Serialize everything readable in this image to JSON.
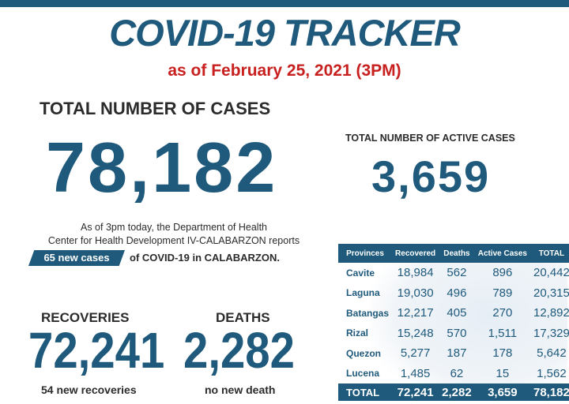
{
  "header": {
    "title": "COVID-19 TRACKER",
    "subtitle": "as of February 25, 2021 (3PM)"
  },
  "total_cases": {
    "label": "TOTAL NUMBER OF CASES",
    "value": "78,182"
  },
  "active_cases": {
    "label": "TOTAL NUMBER OF ACTIVE CASES",
    "value": "3,659"
  },
  "report": {
    "line1": "As of 3pm today, the Department of Health",
    "line2": "Center for Health Development IV-CALABARZON reports",
    "new_cases_badge": "65 new cases",
    "line3_tail": "of COVID-19 in CALABARZON."
  },
  "recoveries": {
    "label": "RECOVERIES",
    "value": "72,241",
    "note": "54 new recoveries"
  },
  "deaths": {
    "label": "DEATHS",
    "value": "2,282",
    "note": "no new death"
  },
  "table": {
    "headers": [
      "Provinces",
      "Recovered",
      "Deaths",
      "Active Cases",
      "TOTAL"
    ],
    "rows": [
      [
        "Cavite",
        "18,984",
        "562",
        "896",
        "20,442"
      ],
      [
        "Laguna",
        "19,030",
        "496",
        "789",
        "20,315"
      ],
      [
        "Batangas",
        "12,217",
        "405",
        "270",
        "12,892"
      ],
      [
        "Rizal",
        "15,248",
        "570",
        "1,511",
        "17,329"
      ],
      [
        "Quezon",
        "5,277",
        "187",
        "178",
        "5,642"
      ],
      [
        "Lucena",
        "1,485",
        "62",
        "15",
        "1,562"
      ]
    ],
    "total": [
      "TOTAL",
      "72,241",
      "2,282",
      "3,659",
      "78,182"
    ]
  },
  "colors": {
    "primary": "#1f5a7c",
    "accent_red": "#c8201f",
    "text": "#2b2b2b"
  }
}
